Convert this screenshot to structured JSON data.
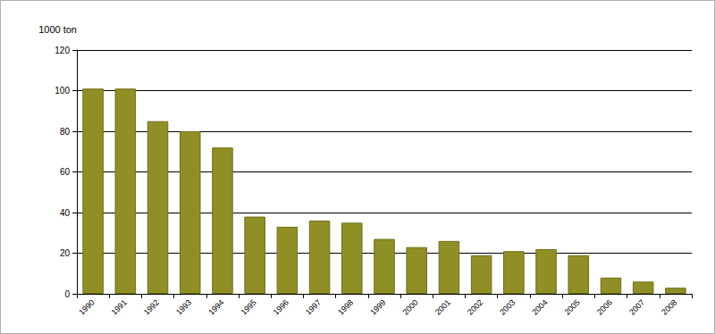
{
  "chart_data": {
    "type": "bar",
    "ylabel": "1000 ton",
    "categories": [
      "1990",
      "1991",
      "1992",
      "1993",
      "1994",
      "1995",
      "1996",
      "1997",
      "1998",
      "1999",
      "2000",
      "2001",
      "2002",
      "2003",
      "2004",
      "2005",
      "2006",
      "2007",
      "2008"
    ],
    "values": [
      101,
      101,
      85,
      80,
      72,
      38,
      33,
      36,
      35,
      27,
      23,
      26,
      19,
      21,
      22,
      19,
      8,
      6,
      3
    ],
    "color": "#8f8f26",
    "ylim": [
      0,
      120
    ],
    "yticks": [
      0,
      20,
      40,
      60,
      80,
      100,
      120
    ],
    "grid": true
  }
}
